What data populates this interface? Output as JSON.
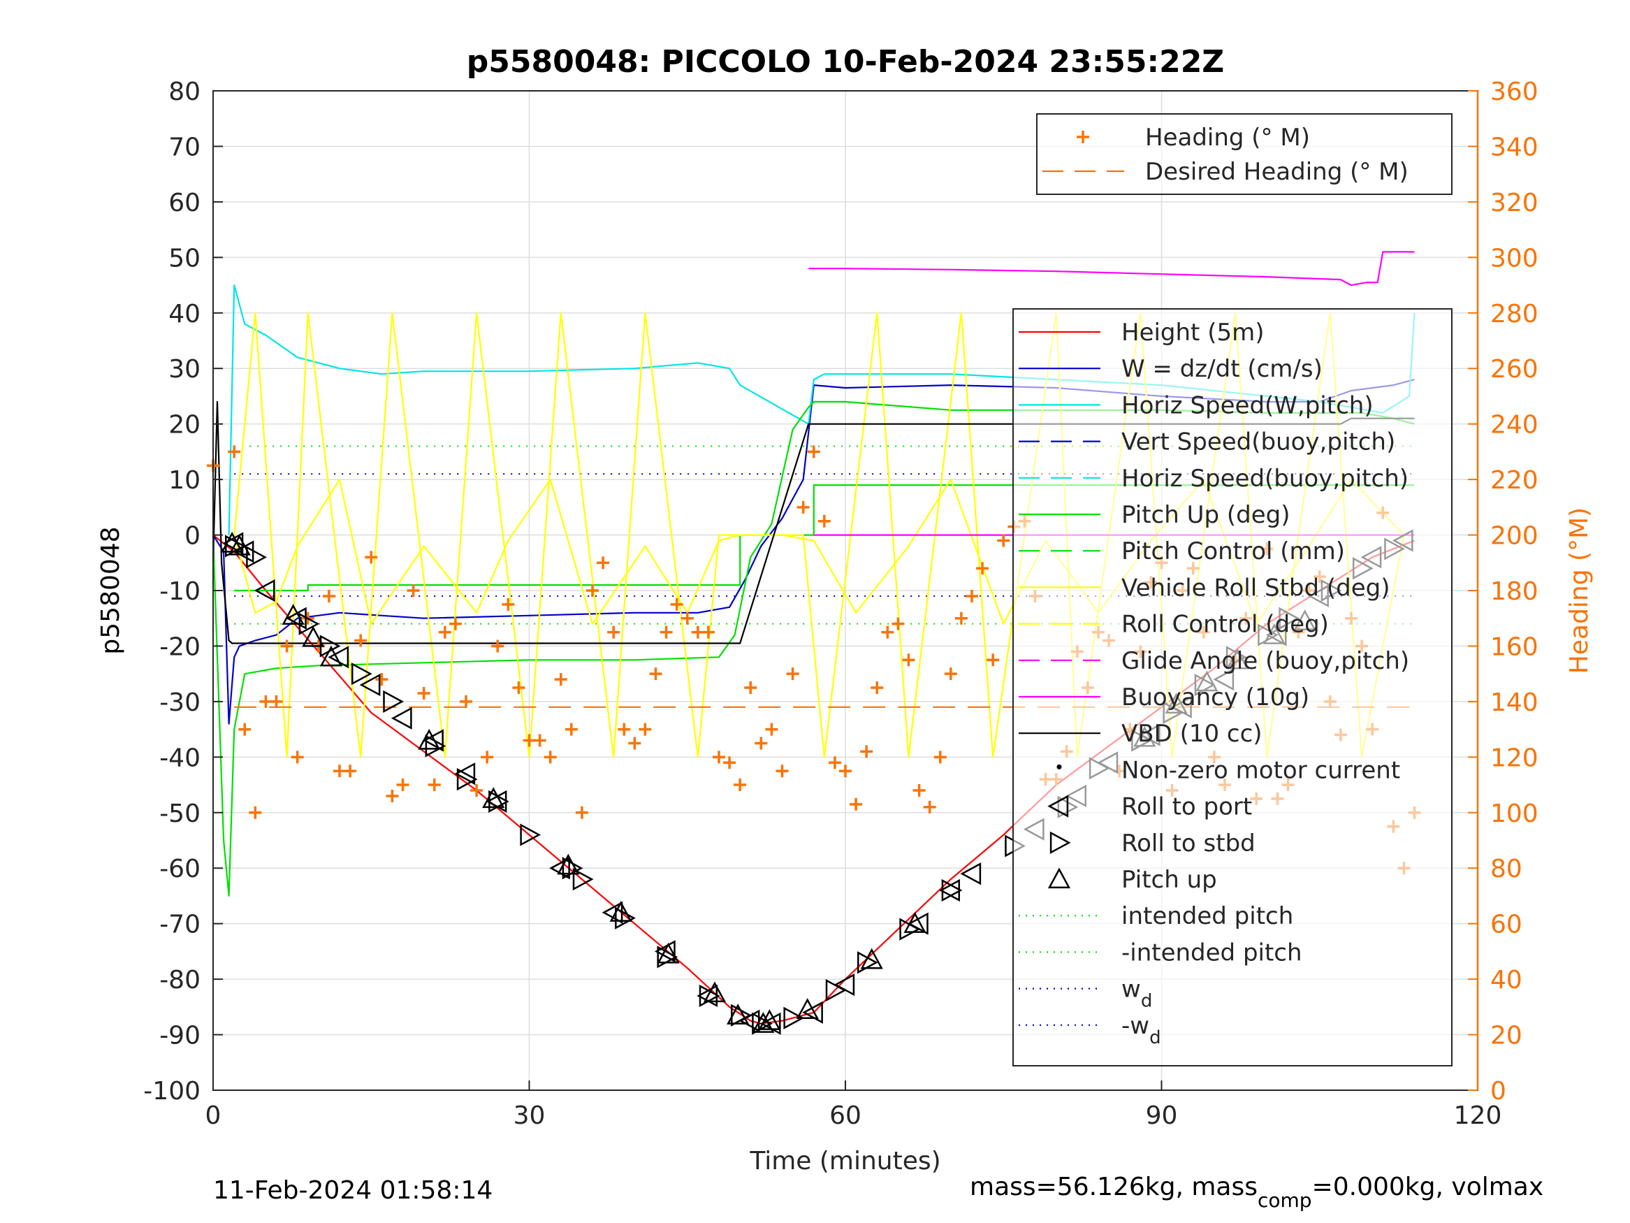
{
  "chart_data": {
    "type": "line",
    "title": "p5580048: PICCOLO 10-Feb-2024 23:55:22Z",
    "xlabel": "Time (minutes)",
    "ylabel": "p5580048",
    "ylabel_right": "Heading (°M)",
    "xlim": [
      0,
      120
    ],
    "ylim": [
      -100,
      80
    ],
    "ylim_right": [
      0,
      360
    ],
    "x_ticks": [
      "0",
      "30",
      "60",
      "90",
      "120"
    ],
    "y_ticks": [
      "-100",
      "-90",
      "-80",
      "-70",
      "-60",
      "-50",
      "-40",
      "-30",
      "-20",
      "-10",
      "0",
      "10",
      "20",
      "30",
      "40",
      "50",
      "60",
      "70",
      "80"
    ],
    "y_ticks_right": [
      "0",
      "20",
      "40",
      "60",
      "80",
      "100",
      "120",
      "140",
      "160",
      "180",
      "200",
      "220",
      "240",
      "260",
      "280",
      "300",
      "320",
      "340",
      "360"
    ],
    "grid": true,
    "legend_top": [
      {
        "label": "Heading (° M)",
        "color": "#F97306",
        "style": "plus"
      },
      {
        "label": "Desired Heading (° M)",
        "color": "#F97306",
        "style": "dashed"
      }
    ],
    "legend_main": [
      {
        "label": "Height (5m)",
        "color": "#FF0000",
        "style": "solid"
      },
      {
        "label": "W = dz/dt (cm/s)",
        "color": "#0000CC",
        "style": "solid"
      },
      {
        "label": "Horiz Speed(W,pitch)",
        "color": "#00E5E5",
        "style": "solid"
      },
      {
        "label": "Vert Speed(buoy,pitch)",
        "color": "#0000CC",
        "style": "dashed"
      },
      {
        "label": "Horiz Speed(buoy,pitch)",
        "color": "#00E5E5",
        "style": "dashed"
      },
      {
        "label": "Pitch Up (deg)",
        "color": "#00E000",
        "style": "solid"
      },
      {
        "label": "Pitch Control (mm)",
        "color": "#00E000",
        "style": "dashed"
      },
      {
        "label": "Vehicle Roll Stbd (deg)",
        "color": "#FFFF00",
        "style": "solid"
      },
      {
        "label": "Roll Control (deg)",
        "color": "#FFFF00",
        "style": "dashed"
      },
      {
        "label": "Glide Angle (buoy,pitch)",
        "color": "#FF00FF",
        "style": "dashed"
      },
      {
        "label": "Buoyancy (10g)",
        "color": "#FF00FF",
        "style": "solid"
      },
      {
        "label": "VBD (10 cc)",
        "color": "#000000",
        "style": "solid"
      },
      {
        "label": "Non-zero motor current",
        "color": "#000000",
        "style": "dot"
      },
      {
        "label": "Roll to port",
        "color": "#000000",
        "style": "tri-left"
      },
      {
        "label": "Roll to stbd",
        "color": "#000000",
        "style": "tri-right"
      },
      {
        "label": "Pitch up",
        "color": "#000000",
        "style": "tri-up"
      },
      {
        "label": "intended pitch",
        "color": "#00E000",
        "style": "dotted"
      },
      {
        "label": "-intended pitch",
        "color": "#00E000",
        "style": "dotted"
      },
      {
        "label": "w",
        "sub": "d",
        "color": "#0000CC",
        "style": "dotted"
      },
      {
        "label": "-w",
        "sub": "d",
        "color": "#0000CC",
        "style": "dotted"
      }
    ],
    "series": [
      {
        "name": "Height (5m)",
        "color": "#FF0000",
        "x": [
          0,
          1,
          2,
          5,
          10,
          15,
          20,
          25,
          30,
          35,
          40,
          45,
          49,
          51,
          52,
          54,
          57,
          60,
          65,
          70,
          75,
          80,
          85,
          90,
          95,
          100,
          105,
          110,
          114
        ],
        "y": [
          0,
          -1.5,
          -3,
          -10,
          -21,
          -32,
          -39,
          -46,
          -54,
          -62,
          -70,
          -78,
          -85,
          -87.5,
          -88,
          -87.5,
          -86,
          -80,
          -71,
          -62,
          -54,
          -45,
          -38,
          -31,
          -24,
          -16,
          -10,
          -4,
          -1
        ]
      },
      {
        "name": "W = dz/dt (cm/s)",
        "color": "#0000CC",
        "x": [
          0,
          1,
          1.5,
          2,
          2.5,
          4,
          6,
          8,
          12,
          16,
          20,
          30,
          40,
          46,
          49,
          50.5,
          52,
          54,
          56,
          57,
          60,
          70,
          80,
          90,
          100,
          105,
          108,
          112,
          114
        ],
        "y": [
          0,
          -3,
          -34,
          -22,
          -20,
          -19,
          -18,
          -15,
          -14,
          -14.5,
          -15,
          -14.5,
          -14,
          -14,
          -13,
          -8,
          -2,
          3,
          10,
          27,
          26.5,
          27,
          26.5,
          25,
          24,
          24,
          26,
          27,
          28
        ]
      },
      {
        "name": "Horiz Speed(W,pitch)",
        "color": "#00E5E5",
        "x": [
          1.5,
          2,
          3,
          5,
          8,
          12,
          16,
          20,
          30,
          40,
          46,
          49,
          50,
          56.5,
          57,
          58,
          70,
          80,
          90,
          100,
          105,
          108,
          111,
          113.5,
          114
        ],
        "y": [
          0,
          45,
          38,
          36,
          32,
          30,
          29,
          29.5,
          29.5,
          30,
          31,
          30,
          27,
          20,
          28,
          29,
          29,
          28,
          27,
          25,
          24,
          23,
          22,
          25,
          40
        ]
      },
      {
        "name": "Pitch Up (deg)",
        "color": "#00E000",
        "x": [
          0,
          1,
          1.5,
          2,
          3,
          6,
          10,
          20,
          30,
          40,
          48,
          49.5,
          51,
          53,
          55,
          56.5,
          57,
          60,
          70,
          80,
          90,
          100,
          105,
          109,
          112,
          114
        ],
        "y": [
          0,
          -55,
          -65,
          -35,
          -25,
          -24,
          -23.5,
          -23,
          -22.5,
          -22.5,
          -22,
          -18,
          -4,
          2,
          19,
          23,
          24,
          24,
          22.5,
          22.5,
          22.5,
          22,
          22,
          22,
          21,
          20
        ]
      },
      {
        "name": "Pitch Control (mm)",
        "color": "#00E000",
        "x": [
          2,
          9,
          9,
          50,
          50,
          57,
          57,
          114
        ],
        "y": [
          -10,
          -10,
          -9,
          -9,
          0,
          0,
          9,
          9
        ]
      },
      {
        "name": "Vehicle Roll Stbd (deg)",
        "color": "#FFFF00",
        "x": [
          2,
          4,
          6,
          8,
          12,
          15,
          20,
          25,
          28,
          32,
          36,
          41,
          45,
          48,
          50,
          52,
          54,
          57,
          61,
          66,
          70,
          75,
          79,
          84,
          89,
          94,
          99,
          104,
          108,
          113
        ],
        "y": [
          0,
          -14,
          -12,
          -2,
          10,
          -16,
          -2,
          -14,
          -1,
          10,
          -16,
          -2,
          -14,
          -1,
          0,
          0,
          0,
          -1,
          -14,
          -2,
          10,
          -16,
          -1,
          -14,
          -1,
          10,
          -16,
          -2,
          10,
          0
        ]
      },
      {
        "name": "Roll Control (deg)",
        "color": "#FFFF00",
        "x": [
          2,
          4,
          7,
          9,
          14,
          17,
          22,
          25,
          30,
          33,
          38,
          41,
          46,
          48,
          56,
          58,
          63,
          66,
          71,
          74,
          80,
          82,
          88,
          91,
          97,
          100,
          106,
          109,
          113
        ],
        "y": [
          0,
          40,
          -40,
          40,
          -40,
          40,
          -40,
          40,
          -40,
          40,
          -40,
          40,
          -40,
          0,
          0,
          -40,
          40,
          -40,
          40,
          -40,
          40,
          -40,
          40,
          -40,
          40,
          -40,
          40,
          -40,
          0
        ]
      },
      {
        "name": "Glide Angle (buoy,pitch)",
        "color": "#FF00FF",
        "x": [
          57,
          114
        ],
        "y": [
          0,
          0
        ]
      },
      {
        "name": "Buoyancy (10g)",
        "color": "#FF00FF",
        "x": [
          56.5,
          60,
          70,
          80,
          90,
          100,
          107,
          108,
          109.5,
          110.5,
          111,
          114
        ],
        "y": [
          48,
          48,
          47.8,
          47.5,
          47,
          46.5,
          46,
          45,
          45.5,
          45.5,
          51,
          51
        ]
      },
      {
        "name": "VBD (10 cc)",
        "color": "#000000",
        "x": [
          0,
          0.4,
          0.8,
          1.5,
          1.8,
          50,
          56.5,
          107,
          108,
          114
        ],
        "y": [
          -5,
          24,
          -5,
          -19,
          -19.5,
          -19.5,
          20,
          20,
          21,
          21
        ]
      },
      {
        "name": "Heading (° M)",
        "color": "#F97306",
        "marker": "plus",
        "axis": "right",
        "x": [
          0,
          2,
          3,
          4,
          5,
          6,
          7,
          8,
          9,
          10,
          11,
          12,
          13,
          14,
          15,
          16,
          17,
          18,
          19,
          20,
          21,
          22,
          23,
          24,
          25,
          26,
          27,
          28,
          29,
          30,
          31,
          32,
          33,
          34,
          35,
          36,
          37,
          38,
          39,
          40,
          41,
          42,
          43,
          44,
          45,
          46,
          47,
          48,
          49,
          50,
          51,
          52,
          53,
          54,
          55,
          56,
          57,
          58,
          59,
          60,
          61,
          62,
          63,
          64,
          65,
          66,
          67,
          68,
          69,
          70,
          71,
          72,
          73,
          74,
          75,
          76,
          77,
          78,
          79,
          80,
          81,
          82,
          83,
          84,
          85,
          86,
          87,
          88,
          89,
          90,
          91,
          92,
          93,
          94,
          95,
          96,
          97,
          98,
          99,
          100,
          101,
          102,
          103,
          104,
          105,
          106,
          107,
          108,
          109,
          110,
          111,
          112,
          113,
          114
        ],
        "y": [
          225,
          230,
          130,
          100,
          140,
          140,
          160,
          120,
          170,
          160,
          178,
          115,
          115,
          162,
          192,
          148,
          106,
          110,
          180,
          143,
          110,
          165,
          168,
          140,
          108,
          120,
          160,
          175,
          145,
          126,
          126,
          120,
          148,
          130,
          100,
          180,
          190,
          165,
          130,
          125,
          130,
          150,
          165,
          175,
          170,
          165,
          165,
          120,
          118,
          110,
          145,
          125,
          130,
          115,
          150,
          210,
          230,
          205,
          118,
          115,
          103,
          122,
          145,
          165,
          168,
          155,
          108,
          102,
          120,
          150,
          170,
          178,
          188,
          155,
          198,
          203,
          205,
          178,
          112,
          112,
          122,
          158,
          145,
          165,
          162,
          115,
          130,
          158,
          183,
          190,
          108,
          180,
          188,
          165,
          120,
          110,
          155,
          170,
          105,
          195,
          105,
          110,
          165,
          180,
          185,
          140,
          128,
          170,
          160,
          130,
          208,
          95,
          80,
          100
        ]
      },
      {
        "name": "Desired Heading (° M)",
        "color": "#F97306",
        "style": "dashed",
        "axis": "right",
        "x": [
          2,
          114
        ],
        "y": [
          138,
          138
        ]
      }
    ],
    "reference_lines": [
      {
        "name": "intended pitch",
        "y": 16,
        "color": "#00E000"
      },
      {
        "name": "-intended pitch",
        "y": -16,
        "color": "#00E000"
      },
      {
        "name": "w_d",
        "y": 11,
        "color": "#0000CC"
      },
      {
        "name": "-w_d",
        "y": -11,
        "color": "#0000CC"
      }
    ],
    "markers": {
      "roll_to_port": {
        "x": [
          2,
          3,
          5,
          8,
          12,
          15,
          18,
          21,
          24,
          27,
          33,
          38,
          43,
          47,
          51,
          53,
          57,
          60,
          67,
          70,
          72,
          78,
          82,
          85,
          89,
          92,
          96,
          101,
          105,
          110,
          113
        ],
        "y": [
          -1.5,
          -3,
          -10,
          -15,
          -22,
          -27,
          -33,
          -37,
          -43,
          -48,
          -60,
          -68,
          -75,
          -83,
          -87.5,
          -88,
          -86,
          -81,
          -70,
          -64,
          -61,
          -53,
          -47,
          -41,
          -36,
          -31,
          -26,
          -18,
          -11,
          -4,
          -1
        ]
      },
      "roll_to_stbd": {
        "x": [
          2,
          4,
          9,
          11,
          14,
          17,
          21,
          24,
          27,
          30,
          34,
          35,
          39,
          43,
          47,
          50,
          52,
          55,
          59,
          62,
          66,
          70,
          76,
          81,
          84,
          88,
          91,
          94,
          97,
          100,
          102,
          106,
          109,
          112
        ],
        "y": [
          -2,
          -4,
          -16,
          -20,
          -25,
          -30,
          -38,
          -44,
          -48,
          -54,
          -60,
          -62,
          -69,
          -76,
          -83,
          -86.5,
          -88,
          -87,
          -82,
          -77,
          -71,
          -64,
          -56,
          -49,
          -42,
          -37,
          -32,
          -27,
          -22,
          -18,
          -15,
          -10,
          -6,
          -2.5
        ]
      },
      "pitch_up": {
        "x": [
          1.8,
          2.5,
          7.6,
          9.5,
          11.2,
          20.5,
          26.6,
          33.7,
          38.7,
          43.2,
          47.6,
          49.8,
          52.2,
          52.8,
          56.4,
          62.5,
          66.6,
          88.4,
          91.4,
          94.3,
          97.2,
          100.7,
          103.6
        ],
        "y": [
          -1.5,
          -2,
          -14.5,
          -18.5,
          -22,
          -37,
          -47.5,
          -59.5,
          -68,
          -75.5,
          -82.5,
          -86.5,
          -88,
          -87.5,
          -85.5,
          -76.5,
          -70,
          -36.5,
          -30.5,
          -26.5,
          -22.5,
          -18,
          -15.5
        ]
      }
    }
  },
  "footer": {
    "date": "11-Feb-2024 01:58:14",
    "mass_text_prefix": "mass=56.126kg, mass",
    "mass_sub": "comp",
    "mass_text_suffix": "=0.000kg, volmax"
  }
}
